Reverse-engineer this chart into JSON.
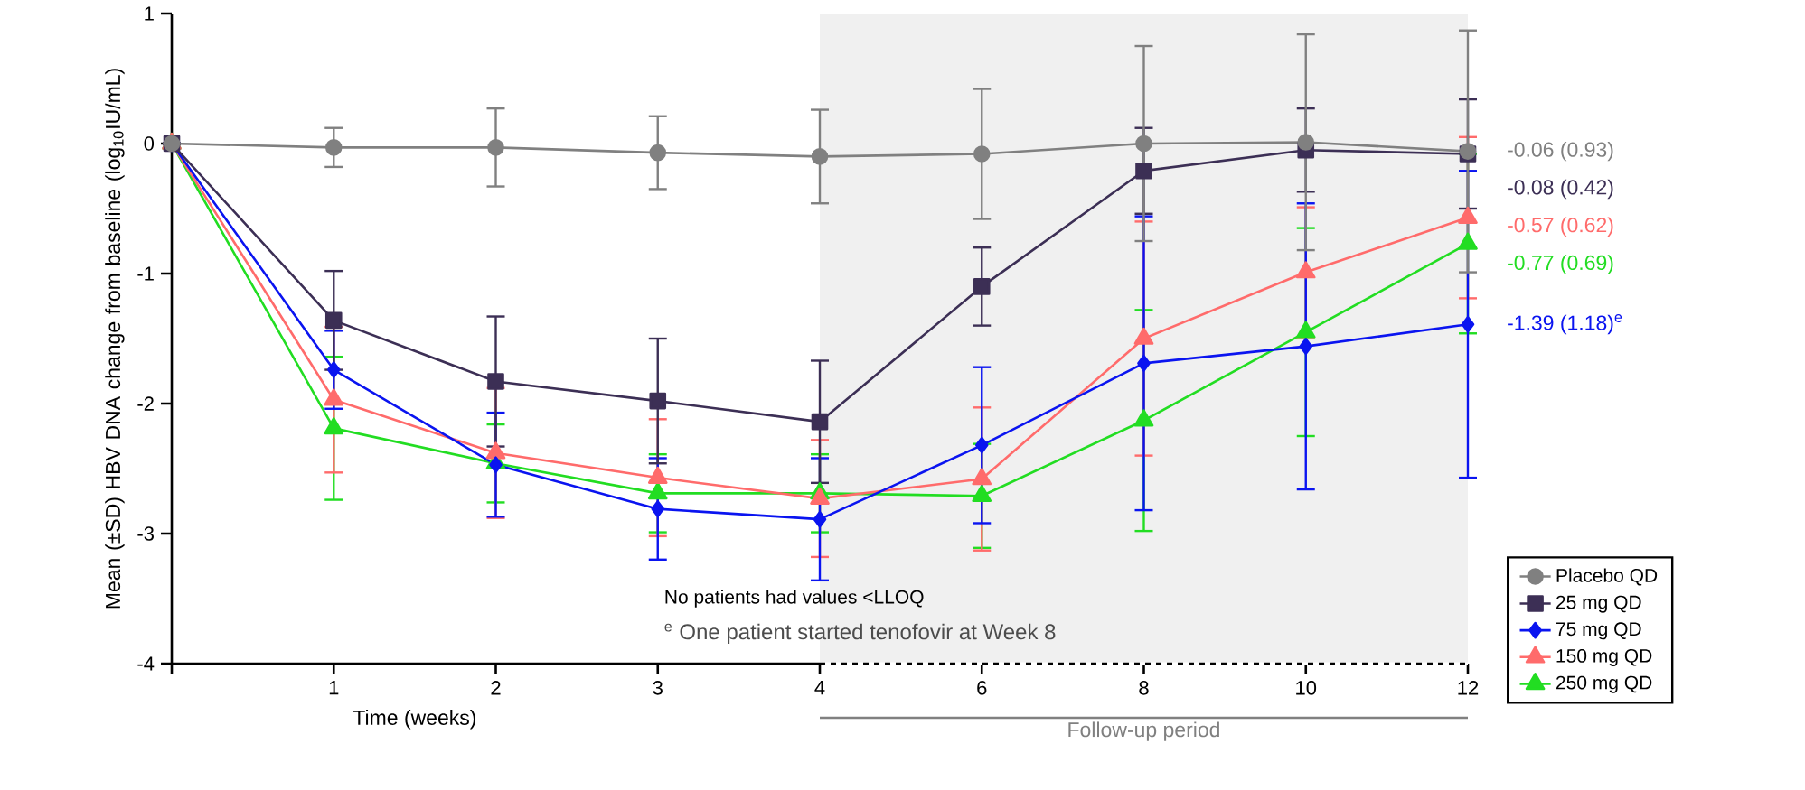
{
  "chart_data": {
    "type": "line",
    "ylabel": "Mean (±SD) HBV DNA change from baseline (log$_{10}$IU/mL)",
    "xlabel": "Time (weeks)",
    "categories": [
      null,
      "1",
      "2",
      "3",
      "4",
      "6",
      "8",
      "10",
      "12"
    ],
    "ylim": [
      -4,
      1
    ],
    "yticks": [
      -4,
      -3,
      -2,
      -1,
      0,
      1
    ],
    "legend": "bottom right",
    "bands": [
      {
        "axis": "x",
        "from": "4",
        "to": "12",
        "label": "Follow-up period",
        "color": "#f0f0f0"
      }
    ],
    "annotations": [
      "No patients had values <LLOQ",
      "$^{e}$ One patient started tenofovir at Week 8"
    ],
    "series": [
      {
        "name": "Placebo QD",
        "color": "#808080",
        "marker": "circle",
        "values": [
          0,
          -0.03,
          -0.03,
          -0.07,
          -0.1,
          -0.08,
          0.0,
          0.01,
          -0.06
        ],
        "errors": [
          null,
          0.15,
          0.3,
          0.28,
          0.36,
          0.5,
          0.75,
          0.83,
          0.93
        ],
        "value_labels": [
          null,
          null,
          null,
          null,
          null,
          null,
          null,
          null,
          "-0.06 (0.93)"
        ]
      },
      {
        "name": "25 mg QD",
        "color": "#3c2f55",
        "marker": "square",
        "values": [
          0,
          -1.36,
          -1.83,
          -1.98,
          -2.14,
          -1.1,
          -0.21,
          -0.05,
          -0.08
        ],
        "errors": [
          null,
          0.38,
          0.5,
          0.48,
          0.47,
          0.3,
          0.33,
          0.32,
          0.42
        ],
        "value_labels": [
          null,
          null,
          null,
          null,
          null,
          null,
          null,
          null,
          "-0.08 (0.42)"
        ]
      },
      {
        "name": "75 mg QD",
        "color": "#0a14f0",
        "marker": "diamond",
        "values": [
          0,
          -1.74,
          -2.47,
          -2.81,
          -2.89,
          -2.32,
          -1.69,
          -1.56,
          -1.39
        ],
        "errors": [
          null,
          0.3,
          0.4,
          0.39,
          0.47,
          0.6,
          1.13,
          1.1,
          1.18
        ],
        "value_labels": [
          null,
          null,
          null,
          null,
          null,
          null,
          null,
          null,
          "-1.39 (1.18)$^{e}$"
        ]
      },
      {
        "name": "150 mg QD",
        "color": "#ff6b6b",
        "marker": "triangle",
        "values": [
          0,
          -1.97,
          -2.38,
          -2.57,
          -2.73,
          -2.58,
          -1.5,
          -0.99,
          -0.57
        ],
        "errors": [
          null,
          0.56,
          0.5,
          0.45,
          0.45,
          0.55,
          0.9,
          0.5,
          0.62
        ],
        "value_labels": [
          null,
          null,
          null,
          null,
          null,
          null,
          null,
          null,
          "-0.57 (0.62)"
        ]
      },
      {
        "name": "250 mg QD",
        "color": "#22dd22",
        "marker": "triangle",
        "values": [
          0,
          -2.19,
          -2.46,
          -2.69,
          -2.69,
          -2.71,
          -2.13,
          -1.45,
          -0.77
        ],
        "errors": [
          null,
          0.55,
          0.3,
          0.3,
          0.3,
          0.4,
          0.85,
          0.8,
          0.69
        ],
        "value_labels": [
          null,
          null,
          null,
          null,
          null,
          null,
          null,
          null,
          "-0.77 (0.69)"
        ]
      }
    ]
  }
}
